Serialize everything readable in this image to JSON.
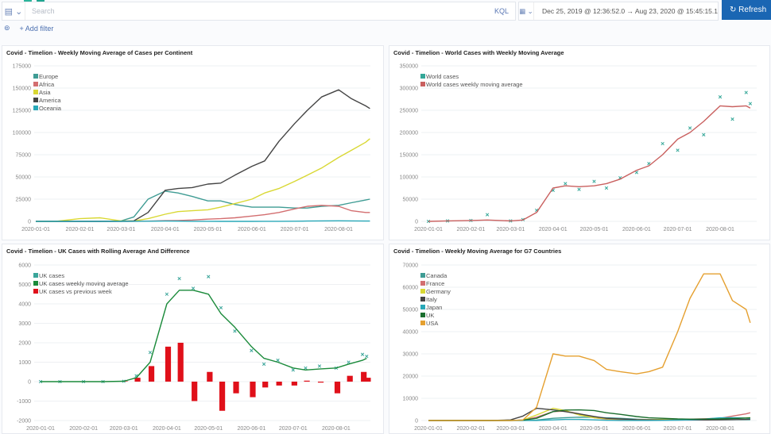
{
  "topbar": {
    "search_placeholder": "Search",
    "query_language": "KQL",
    "date_range": "Dec 25, 2019 @ 12:36:52.0  →  Aug 23, 2020 @ 15:45:15.1",
    "refresh_label": "↻ Refresh",
    "add_filter_label": "+ Add filter",
    "accent_color": "#1a66b3"
  },
  "chart_data": [
    {
      "type": "line",
      "title": "Covid - Timelion - Weekly Moving Average of Cases per Continent",
      "x": [
        "2020-01-01",
        "2020-01-15",
        "2020-02-01",
        "2020-02-15",
        "2020-03-01",
        "2020-03-10",
        "2020-03-20",
        "2020-04-01",
        "2020-04-10",
        "2020-04-20",
        "2020-05-01",
        "2020-05-10",
        "2020-05-20",
        "2020-06-01",
        "2020-06-10",
        "2020-06-20",
        "2020-07-01",
        "2020-07-10",
        "2020-07-20",
        "2020-08-01",
        "2020-08-10",
        "2020-08-20",
        "2020-08-23"
      ],
      "xticks": [
        "2020-01-01",
        "2020-02-01",
        "2020-03-01",
        "2020-04-01",
        "2020-05-01",
        "2020-06-01",
        "2020-07-01",
        "2020-08-01"
      ],
      "ylim": [
        0,
        175000
      ],
      "yticks": [
        0,
        25000,
        50000,
        75000,
        100000,
        125000,
        150000,
        175000
      ],
      "grid": true,
      "legend": "top-left",
      "series": [
        {
          "name": "Europe",
          "color": "#3f9c94",
          "style": "line",
          "values": [
            0,
            0,
            0,
            0,
            500,
            5000,
            25000,
            34000,
            32000,
            28000,
            23000,
            23000,
            19000,
            16000,
            16000,
            16000,
            15000,
            15000,
            17000,
            18000,
            21000,
            24000,
            25000
          ]
        },
        {
          "name": "Africa",
          "color": "#d36e70",
          "style": "line",
          "values": [
            0,
            0,
            0,
            0,
            0,
            100,
            300,
            800,
            1000,
            1500,
            2500,
            3000,
            4000,
            6000,
            7500,
            10000,
            14000,
            17000,
            18000,
            17000,
            12000,
            10000,
            10000
          ]
        },
        {
          "name": "Asia",
          "color": "#d9d834",
          "style": "line",
          "values": [
            0,
            0,
            3000,
            4000,
            500,
            500,
            3000,
            8000,
            11000,
            12000,
            13000,
            16000,
            20000,
            25000,
            32000,
            37000,
            45000,
            52000,
            60000,
            72000,
            80000,
            89000,
            93000
          ]
        },
        {
          "name": "America",
          "color": "#444444",
          "style": "line",
          "values": [
            0,
            0,
            0,
            0,
            100,
            500,
            10000,
            35000,
            37000,
            38000,
            42000,
            43000,
            52000,
            62000,
            68000,
            90000,
            110000,
            125000,
            140000,
            148000,
            138000,
            130000,
            127000
          ]
        },
        {
          "name": "Oceania",
          "color": "#28a8b8",
          "style": "line",
          "values": [
            0,
            0,
            0,
            0,
            0,
            50,
            200,
            400,
            300,
            100,
            50,
            30,
            20,
            20,
            50,
            100,
            200,
            400,
            500,
            600,
            500,
            400,
            400
          ]
        }
      ]
    },
    {
      "type": "line",
      "title": "Covid - Timelion - World Cases with Weekly Moving Average",
      "x": [
        "2020-01-01",
        "2020-01-15",
        "2020-02-01",
        "2020-02-13",
        "2020-03-01",
        "2020-03-10",
        "2020-03-20",
        "2020-04-01",
        "2020-04-10",
        "2020-04-20",
        "2020-05-01",
        "2020-05-10",
        "2020-05-20",
        "2020-06-01",
        "2020-06-10",
        "2020-06-20",
        "2020-07-01",
        "2020-07-10",
        "2020-07-20",
        "2020-08-01",
        "2020-08-10",
        "2020-08-20",
        "2020-08-23"
      ],
      "xticks": [
        "2020-01-01",
        "2020-02-01",
        "2020-03-01",
        "2020-04-01",
        "2020-05-01",
        "2020-06-01",
        "2020-07-01",
        "2020-08-01"
      ],
      "ylim": [
        0,
        350000
      ],
      "yticks": [
        0,
        50000,
        100000,
        150000,
        200000,
        250000,
        300000,
        350000
      ],
      "grid": true,
      "legend": "top-left",
      "series": [
        {
          "name": "World cases",
          "color": "#34a798",
          "style": "scatter",
          "values": [
            0,
            1000,
            2000,
            15000,
            1000,
            4000,
            25000,
            70000,
            85000,
            72000,
            90000,
            75000,
            98000,
            110000,
            130000,
            175000,
            160000,
            210000,
            195000,
            280000,
            230000,
            290000,
            265000
          ]
        },
        {
          "name": "World cases weekly moving average",
          "color": "#c9605f",
          "style": "line",
          "values": [
            0,
            1000,
            2000,
            3000,
            1000,
            3000,
            20000,
            75000,
            80000,
            78000,
            80000,
            85000,
            95000,
            115000,
            125000,
            150000,
            185000,
            200000,
            225000,
            260000,
            258000,
            260000,
            255000
          ]
        }
      ]
    },
    {
      "type": "line",
      "title": "Covid - Timelion - UK Cases with Rolling Average And Difference",
      "x": [
        "2020-01-01",
        "2020-01-15",
        "2020-02-01",
        "2020-02-15",
        "2020-03-01",
        "2020-03-10",
        "2020-03-20",
        "2020-04-01",
        "2020-04-10",
        "2020-04-20",
        "2020-05-01",
        "2020-05-10",
        "2020-05-20",
        "2020-06-01",
        "2020-06-10",
        "2020-06-20",
        "2020-07-01",
        "2020-07-10",
        "2020-07-20",
        "2020-08-01",
        "2020-08-10",
        "2020-08-20",
        "2020-08-23"
      ],
      "xticks": [
        "2020-01-01",
        "2020-02-01",
        "2020-03-01",
        "2020-04-01",
        "2020-05-01",
        "2020-06-01",
        "2020-07-01",
        "2020-08-01"
      ],
      "ylim": [
        -2000,
        6000
      ],
      "yticks": [
        -2000,
        -1000,
        0,
        1000,
        2000,
        3000,
        4000,
        5000,
        6000
      ],
      "grid": true,
      "legend": "top-left",
      "series": [
        {
          "name": "UK cases",
          "color": "#3aa59a",
          "style": "scatter",
          "values": [
            0,
            0,
            0,
            0,
            20,
            300,
            1500,
            4500,
            5300,
            4800,
            5400,
            3800,
            2600,
            1600,
            900,
            1100,
            600,
            700,
            800,
            700,
            1000,
            1400,
            1300
          ]
        },
        {
          "name": "UK cases weekly moving average",
          "color": "#1a8a3a",
          "style": "line",
          "values": [
            0,
            0,
            0,
            0,
            20,
            200,
            1000,
            4000,
            4700,
            4700,
            4500,
            3500,
            2800,
            1800,
            1200,
            1000,
            700,
            600,
            650,
            700,
            900,
            1100,
            1200
          ]
        },
        {
          "name": "UK cases vs previous week",
          "color": "#e0101a",
          "style": "bar",
          "values": [
            0,
            0,
            0,
            0,
            20,
            200,
            800,
            1800,
            2000,
            -1000,
            500,
            -1500,
            -600,
            -800,
            -300,
            -200,
            -200,
            50,
            -50,
            -600,
            300,
            500,
            200
          ]
        }
      ]
    },
    {
      "type": "line",
      "title": "Covid - Timelion - Weekly Moving Average for G7 Countries",
      "x": [
        "2020-01-01",
        "2020-01-15",
        "2020-02-01",
        "2020-02-15",
        "2020-03-01",
        "2020-03-10",
        "2020-03-20",
        "2020-04-01",
        "2020-04-10",
        "2020-04-20",
        "2020-05-01",
        "2020-05-10",
        "2020-05-20",
        "2020-06-01",
        "2020-06-10",
        "2020-06-20",
        "2020-07-01",
        "2020-07-10",
        "2020-07-20",
        "2020-08-01",
        "2020-08-10",
        "2020-08-20",
        "2020-08-23"
      ],
      "xticks": [
        "2020-01-01",
        "2020-02-01",
        "2020-03-01",
        "2020-04-01",
        "2020-05-01",
        "2020-06-01",
        "2020-07-01",
        "2020-08-01"
      ],
      "ylim": [
        0,
        70000
      ],
      "yticks": [
        0,
        10000,
        20000,
        30000,
        40000,
        50000,
        60000,
        70000
      ],
      "grid": true,
      "legend": "top-left",
      "series": [
        {
          "name": "Canada",
          "color": "#3f9c94",
          "style": "line",
          "values": [
            0,
            0,
            0,
            0,
            0,
            20,
            200,
            1000,
            1300,
            1500,
            1400,
            1200,
            1000,
            600,
            400,
            300,
            300,
            300,
            400,
            400,
            400,
            400,
            400
          ]
        },
        {
          "name": "France",
          "color": "#d36e70",
          "style": "line",
          "values": [
            0,
            0,
            0,
            0,
            20,
            200,
            1500,
            4000,
            4200,
            3000,
            1200,
            600,
            400,
            400,
            400,
            500,
            500,
            600,
            800,
            1000,
            2000,
            3000,
            3500
          ]
        },
        {
          "name": "Germany",
          "color": "#d9d834",
          "style": "line",
          "values": [
            0,
            0,
            0,
            0,
            20,
            200,
            2500,
            5500,
            4500,
            2500,
            1300,
            800,
            600,
            400,
            350,
            500,
            450,
            450,
            500,
            700,
            1000,
            1200,
            1300
          ]
        },
        {
          "name": "Italy",
          "color": "#444444",
          "style": "line",
          "values": [
            0,
            0,
            0,
            0,
            300,
            2000,
            5500,
            4800,
            4000,
            3000,
            1800,
            1000,
            700,
            400,
            300,
            250,
            200,
            200,
            250,
            300,
            400,
            500,
            600
          ]
        },
        {
          "name": "Japan",
          "color": "#28a8b8",
          "style": "line",
          "values": [
            0,
            0,
            0,
            0,
            20,
            50,
            50,
            300,
            500,
            500,
            300,
            100,
            50,
            40,
            40,
            60,
            150,
            300,
            600,
            1200,
            1300,
            1100,
            1000
          ]
        },
        {
          "name": "UK",
          "color": "#1a6e2e",
          "style": "line",
          "values": [
            0,
            0,
            0,
            0,
            20,
            200,
            1000,
            4000,
            4700,
            4800,
            4500,
            3500,
            2800,
            1800,
            1200,
            1000,
            700,
            600,
            650,
            700,
            900,
            1100,
            1200
          ]
        },
        {
          "name": "USA",
          "color": "#e5a030",
          "style": "line",
          "values": [
            0,
            0,
            0,
            0,
            0,
            200,
            6000,
            30000,
            29000,
            29000,
            27000,
            23000,
            22000,
            21000,
            22000,
            24000,
            40000,
            55000,
            66000,
            66000,
            54000,
            50000,
            44000
          ]
        }
      ]
    }
  ]
}
